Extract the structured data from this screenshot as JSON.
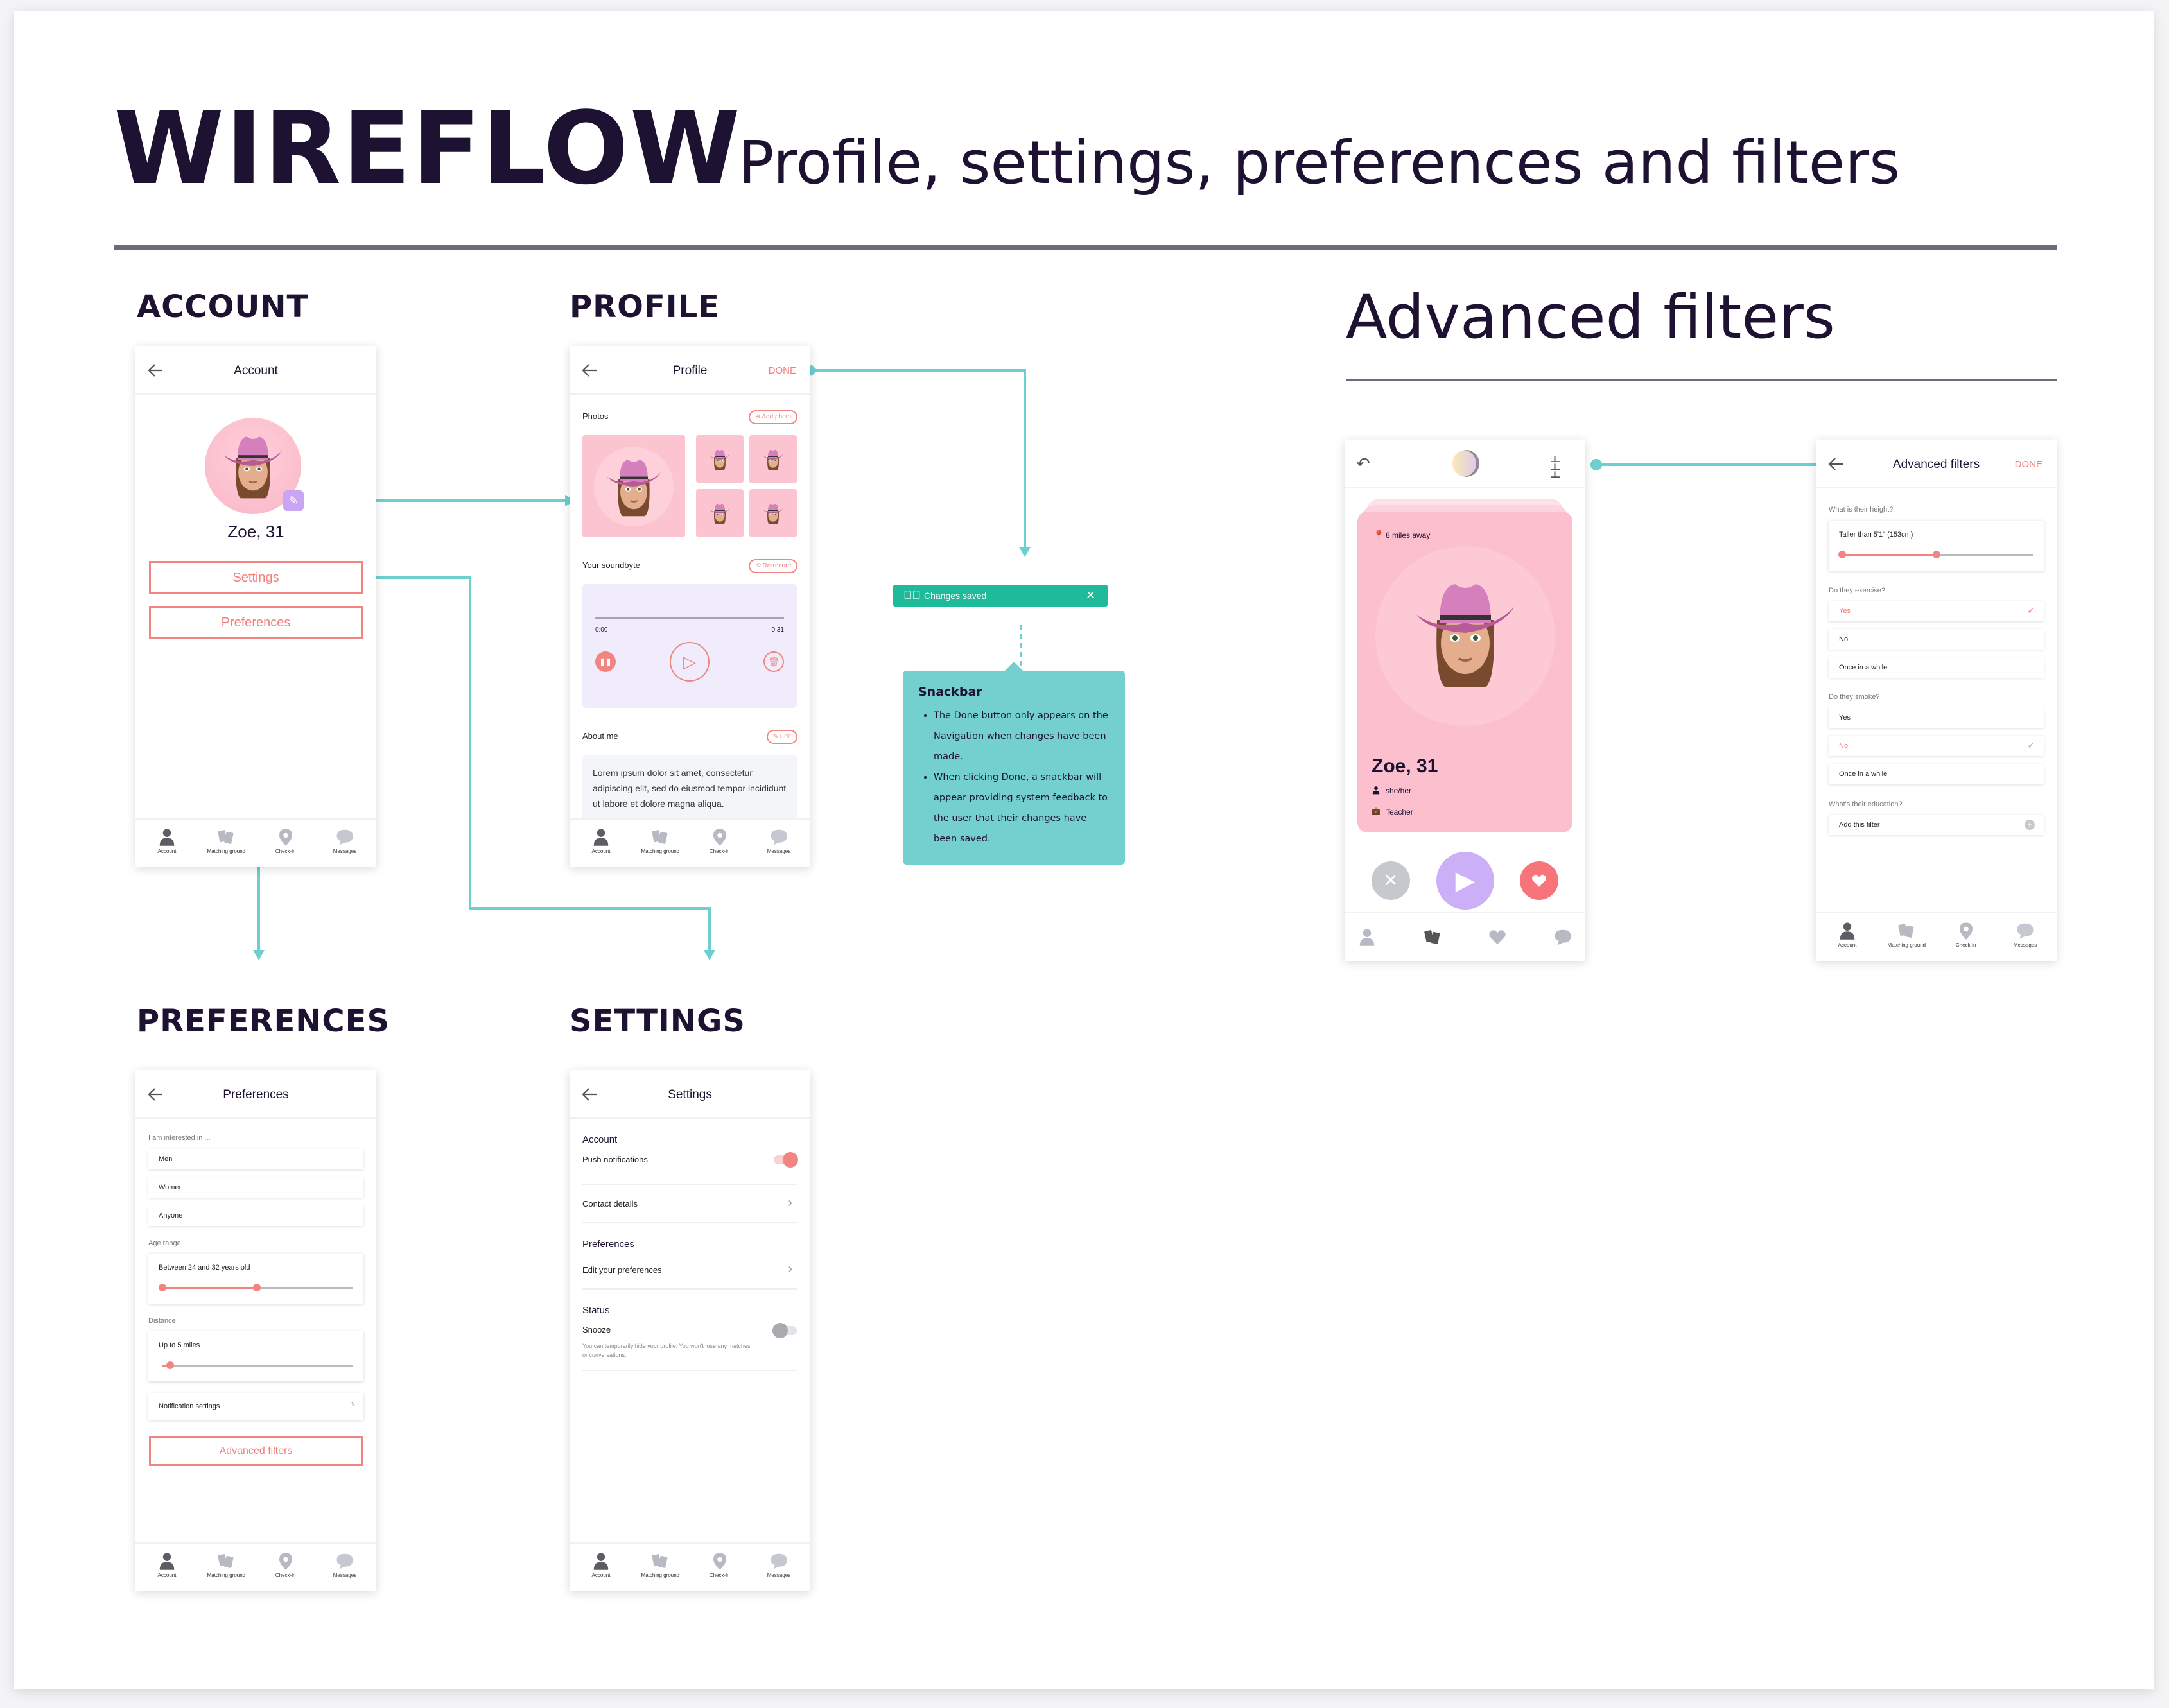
{
  "header": {
    "title": "WIREFLOW",
    "subtitle": "Profile, settings, preferences and filters"
  },
  "sections": {
    "account": "ACCOUNT",
    "profile": "PROFILE",
    "preferences": "PREFERENCES",
    "settings": "SETTINGS",
    "advanced": "Advanced filters"
  },
  "colors": {
    "accent": "#f28482",
    "connector": "#6dcfcf",
    "snackbar": "#1fba9a",
    "note": "#74cfcf",
    "pink": "#fbc4d0",
    "lavender": "#d5b8f5",
    "ink": "#1e1233"
  },
  "nav": {
    "items": [
      {
        "label": "Account",
        "icon": "person-icon"
      },
      {
        "label": "Matching ground",
        "icon": "cards-icon"
      },
      {
        "label": "Check-in",
        "icon": "pin-icon"
      },
      {
        "label": "Messages",
        "icon": "chat-icon"
      }
    ]
  },
  "account": {
    "title": "Account",
    "name": "Zoe, 31",
    "settings": "Settings",
    "preferences": "Preferences"
  },
  "profile": {
    "title": "Profile",
    "done": "DONE",
    "photos": "Photos",
    "add_photo": "Add photo",
    "soundbyte": "Your soundbyte",
    "rerecord": "Re-record",
    "time_start": "0:00",
    "time_end": "0:31",
    "about": "About me",
    "edit": "Edit",
    "about_text": "Lorem ipsum dolor sit amet, consectetur adipiscing elit, sed do eiusmod tempor incididunt ut labore et dolore magna aliqua."
  },
  "snackbar": {
    "text": "Changes saved"
  },
  "note": {
    "title": "Snackbar",
    "bullets": [
      "The Done button only appears on the Navigation when changes have been made.",
      "When clicking Done, a snackbar will appear providing system feedback to the user that their changes have been saved."
    ]
  },
  "preferences": {
    "title": "Preferences",
    "interested": "I am interested in ...",
    "options": [
      "Men",
      "Women",
      "Anyone"
    ],
    "age_label": "Age range",
    "age_value": "Between 24 and 32 years old",
    "age_slider": {
      "low": 0,
      "high": 0.5
    },
    "distance_label": "Distance",
    "distance_value": "Up to 5 miles",
    "distance_slider": 0.06,
    "notifications": "Notification settings",
    "advanced": "Advanced filters"
  },
  "settings": {
    "title": "Settings",
    "account": "Account",
    "push": "Push notifications",
    "push_on": true,
    "contact": "Contact details",
    "preferences": "Preferences",
    "edit_prefs": "Edit your preferences",
    "status": "Status",
    "snooze": "Snooze",
    "snooze_on": false,
    "snooze_desc": "You can temporarily hide your profile. You won't lose any matches or conversations."
  },
  "discover": {
    "distance": "8 miles away",
    "name": "Zoe, 31",
    "pronouns": "she/her",
    "job": "Teacher"
  },
  "advanced": {
    "title": "Advanced filters",
    "done": "DONE",
    "height_q": "What is their height?",
    "height_value": "Taller than 5'1\" (153cm)",
    "height_slider": {
      "low": 0,
      "high": 0.49
    },
    "exercise_q": "Do they exercise?",
    "exercise": [
      {
        "label": "Yes",
        "selected": true
      },
      {
        "label": "No",
        "selected": false
      },
      {
        "label": "Once in a while",
        "selected": false
      }
    ],
    "smoke_q": "Do they smoke?",
    "smoke": [
      {
        "label": "Yes",
        "selected": false
      },
      {
        "label": "No",
        "selected": true
      },
      {
        "label": "Once in a while",
        "selected": false
      }
    ],
    "education_q": "What's their education?",
    "add_filter": "Add this filter"
  }
}
